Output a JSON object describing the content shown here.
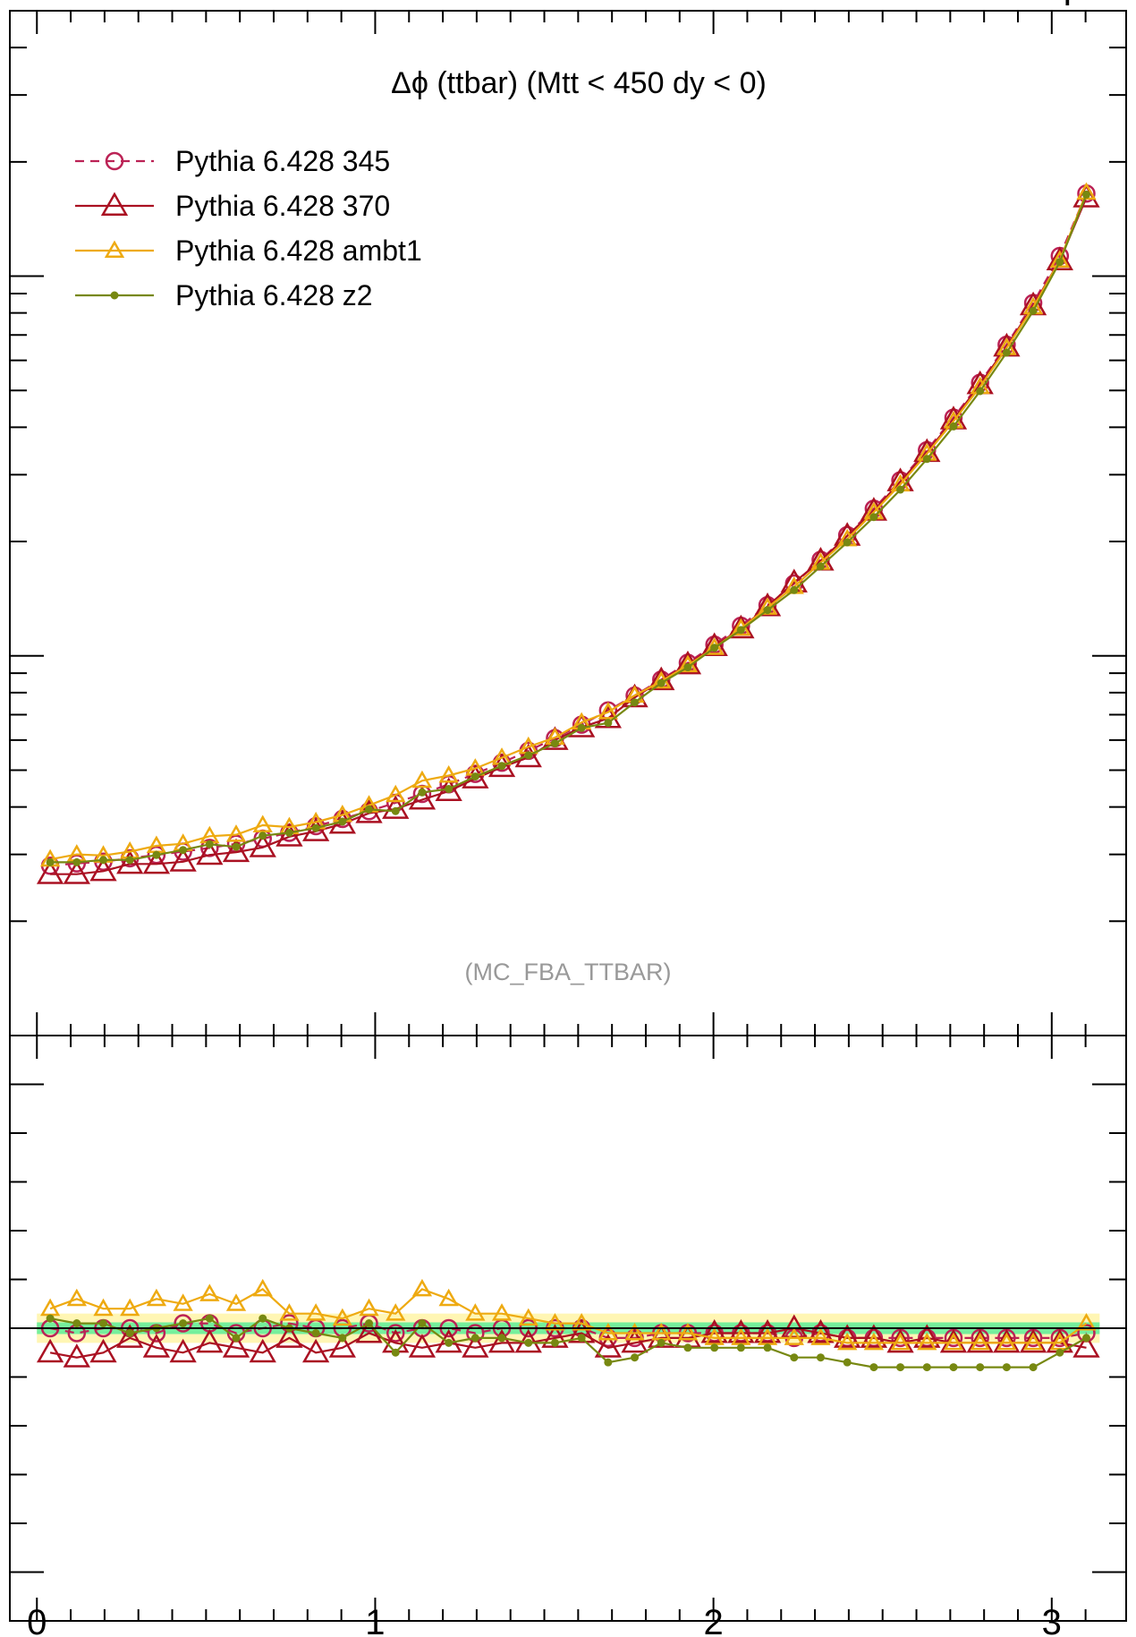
{
  "chart_data": {
    "type": "line",
    "title": "Δϕ (ttbar) (Mtt < 450 dy < 0)",
    "watermark": "(MC_FBA_TTBAR)",
    "top_text": "Υ",
    "xlabel": "",
    "ylabel": "",
    "xlim": [
      -0.08,
      3.22
    ],
    "xticks": [
      0,
      1,
      2,
      3
    ],
    "xtick_labels": [
      "0",
      "1",
      "2",
      "3"
    ],
    "main_yscale": "log",
    "main_ylim": [
      0.1,
      50
    ],
    "ratio_ylim": [
      0.4,
      1.6
    ],
    "grid": false,
    "legend_position": "top-left",
    "series": [
      {
        "name": "Pythia 6.428 345",
        "color": "#bb2255",
        "marker": "open-circle",
        "dash": "dashed",
        "x": [
          0.0393,
          0.1178,
          0.1963,
          0.2749,
          0.3534,
          0.432,
          0.5105,
          0.589,
          0.6676,
          0.7461,
          0.8247,
          0.9032,
          0.9817,
          1.0603,
          1.1388,
          1.2174,
          1.2959,
          1.3744,
          1.453,
          1.5315,
          1.6101,
          1.6886,
          1.7671,
          1.8457,
          1.9242,
          2.0028,
          2.0813,
          2.1598,
          2.2384,
          2.3169,
          2.3955,
          2.474,
          2.5525,
          2.6311,
          2.7096,
          2.7882,
          2.8667,
          2.9452,
          3.0238,
          3.1023
        ],
        "y": [
          0.28,
          0.284,
          0.287,
          0.293,
          0.299,
          0.305,
          0.312,
          0.32,
          0.33,
          0.342,
          0.356,
          0.372,
          0.39,
          0.41,
          0.433,
          0.459,
          0.489,
          0.523,
          0.562,
          0.607,
          0.659,
          0.718,
          0.786,
          0.866,
          0.959,
          1.07,
          1.2,
          1.36,
          1.55,
          1.79,
          2.08,
          2.44,
          2.9,
          3.48,
          4.24,
          5.24,
          6.6,
          8.5,
          11.3,
          16.5
        ],
        "ratio": [
          1.0,
          0.99,
          1.0,
          1.0,
          0.99,
          1.01,
          1.01,
          0.99,
          1.0,
          1.01,
          1.0,
          1.0,
          1.01,
          0.99,
          1.0,
          1.0,
          0.99,
          1.0,
          1.0,
          1.0,
          1.0,
          0.98,
          0.98,
          0.99,
          0.99,
          0.99,
          0.99,
          0.99,
          0.98,
          0.99,
          0.98,
          0.98,
          0.98,
          0.98,
          0.98,
          0.98,
          0.98,
          0.98,
          0.98,
          0.99
        ]
      },
      {
        "name": "Pythia 6.428 370",
        "color": "#aa1122",
        "marker": "open-triangle",
        "dash": "solid",
        "x": [
          0.0393,
          0.1178,
          0.1963,
          0.2749,
          0.3534,
          0.432,
          0.5105,
          0.589,
          0.6676,
          0.7461,
          0.8247,
          0.9032,
          0.9817,
          1.0603,
          1.1388,
          1.2174,
          1.2959,
          1.3744,
          1.453,
          1.5315,
          1.6101,
          1.6886,
          1.7671,
          1.8457,
          1.9242,
          2.0028,
          2.0813,
          2.1598,
          2.2384,
          2.3169,
          2.3955,
          2.474,
          2.5525,
          2.6311,
          2.7096,
          2.7882,
          2.8667,
          2.9452,
          3.0238,
          3.1023
        ],
        "y": [
          0.266,
          0.266,
          0.271,
          0.283,
          0.283,
          0.287,
          0.299,
          0.304,
          0.313,
          0.334,
          0.345,
          0.361,
          0.385,
          0.395,
          0.418,
          0.44,
          0.475,
          0.509,
          0.54,
          0.6,
          0.648,
          0.685,
          0.777,
          0.862,
          0.949,
          1.06,
          1.18,
          1.35,
          1.56,
          1.78,
          2.07,
          2.41,
          2.88,
          3.44,
          4.19,
          5.19,
          6.52,
          8.37,
          11.0,
          16.1
        ],
        "ratio": [
          0.95,
          0.94,
          0.95,
          0.98,
          0.96,
          0.95,
          0.97,
          0.96,
          0.95,
          0.98,
          0.95,
          0.96,
          0.99,
          0.97,
          0.96,
          0.97,
          0.96,
          0.97,
          0.97,
          0.98,
          0.99,
          0.96,
          0.97,
          0.98,
          0.98,
          0.99,
          0.99,
          0.99,
          1.0,
          0.99,
          0.98,
          0.98,
          0.97,
          0.98,
          0.97,
          0.97,
          0.97,
          0.97,
          0.97,
          0.96
        ]
      },
      {
        "name": "Pythia 6.428 ambt1",
        "color": "#eeaa11",
        "marker": "open-triangle-small",
        "dash": "solid",
        "x": [
          0.0393,
          0.1178,
          0.1963,
          0.2749,
          0.3534,
          0.432,
          0.5105,
          0.589,
          0.6676,
          0.7461,
          0.8247,
          0.9032,
          0.9817,
          1.0603,
          1.1388,
          1.2174,
          1.2959,
          1.3744,
          1.453,
          1.5315,
          1.6101,
          1.6886,
          1.7671,
          1.8457,
          1.9242,
          2.0028,
          2.0813,
          2.1598,
          2.2384,
          2.3169,
          2.3955,
          2.474,
          2.5525,
          2.6311,
          2.7096,
          2.7882,
          2.8667,
          2.9452,
          3.0238,
          3.1023
        ],
        "y": [
          0.291,
          0.3,
          0.298,
          0.305,
          0.316,
          0.32,
          0.335,
          0.338,
          0.358,
          0.354,
          0.365,
          0.381,
          0.404,
          0.43,
          0.469,
          0.484,
          0.505,
          0.539,
          0.576,
          0.609,
          0.668,
          0.711,
          0.786,
          0.857,
          0.945,
          1.05,
          1.18,
          1.34,
          1.52,
          1.76,
          2.03,
          2.39,
          2.83,
          3.41,
          4.15,
          5.11,
          6.47,
          8.28,
          11.0,
          16.6
        ],
        "ratio": [
          1.04,
          1.06,
          1.04,
          1.04,
          1.06,
          1.05,
          1.07,
          1.05,
          1.08,
          1.03,
          1.03,
          1.02,
          1.04,
          1.03,
          1.08,
          1.06,
          1.03,
          1.03,
          1.02,
          1.01,
          1.01,
          0.99,
          0.99,
          0.99,
          0.99,
          0.98,
          0.98,
          0.98,
          0.98,
          0.98,
          0.97,
          0.97,
          0.97,
          0.97,
          0.97,
          0.97,
          0.97,
          0.97,
          0.97,
          1.01
        ]
      },
      {
        "name": "Pythia 6.428 z2",
        "color": "#778811",
        "marker": "dot",
        "dash": "solid",
        "x": [
          0.0393,
          0.1178,
          0.1963,
          0.2749,
          0.3534,
          0.432,
          0.5105,
          0.589,
          0.6676,
          0.7461,
          0.8247,
          0.9032,
          0.9817,
          1.0603,
          1.1388,
          1.2174,
          1.2959,
          1.3744,
          1.453,
          1.5315,
          1.6101,
          1.6886,
          1.7671,
          1.8457,
          1.9242,
          2.0028,
          2.0813,
          2.1598,
          2.2384,
          2.3169,
          2.3955,
          2.474,
          2.5525,
          2.6311,
          2.7096,
          2.7882,
          2.8667,
          2.9452,
          3.0238,
          3.1023
        ],
        "y": [
          0.286,
          0.286,
          0.29,
          0.29,
          0.299,
          0.308,
          0.319,
          0.314,
          0.336,
          0.342,
          0.352,
          0.366,
          0.394,
          0.39,
          0.437,
          0.446,
          0.481,
          0.513,
          0.547,
          0.588,
          0.646,
          0.666,
          0.754,
          0.848,
          0.933,
          1.05,
          1.17,
          1.32,
          1.49,
          1.72,
          1.99,
          2.32,
          2.74,
          3.3,
          4.02,
          4.98,
          6.29,
          8.1,
          10.9,
          16.4
        ],
        "ratio": [
          1.02,
          1.01,
          1.01,
          0.99,
          1.0,
          1.01,
          1.02,
          0.98,
          1.02,
          1.0,
          0.99,
          0.98,
          1.01,
          0.95,
          1.01,
          0.97,
          0.98,
          0.98,
          0.97,
          0.97,
          0.98,
          0.93,
          0.94,
          0.97,
          0.96,
          0.96,
          0.96,
          0.96,
          0.94,
          0.94,
          0.93,
          0.92,
          0.92,
          0.92,
          0.92,
          0.92,
          0.92,
          0.92,
          0.95,
          0.98
        ]
      }
    ]
  }
}
